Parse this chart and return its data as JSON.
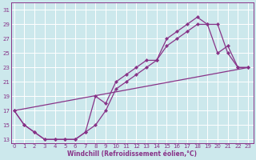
{
  "xlabel": "Windchill (Refroidissement éolien,°C)",
  "bg_color": "#cce8ec",
  "grid_color": "#b0d8dc",
  "line_color": "#883388",
  "x_ticks": [
    0,
    1,
    2,
    3,
    4,
    5,
    6,
    7,
    8,
    9,
    10,
    11,
    12,
    13,
    14,
    15,
    16,
    17,
    18,
    19,
    20,
    21,
    22,
    23
  ],
  "y_ticks": [
    13,
    15,
    17,
    19,
    21,
    23,
    25,
    27,
    29,
    31
  ],
  "xlim": [
    -0.3,
    23.5
  ],
  "ylim": [
    12.5,
    32
  ],
  "line1_x": [
    0,
    1,
    2,
    3,
    4,
    5,
    6,
    7,
    8,
    9,
    10,
    11,
    12,
    13,
    14,
    15,
    16,
    17,
    18,
    19,
    20,
    21,
    22,
    23
  ],
  "line1_y": [
    17,
    15,
    14,
    13,
    13,
    13,
    13,
    14,
    15,
    17,
    20,
    21,
    22,
    23,
    24,
    26,
    27,
    28,
    29,
    29,
    25,
    26,
    23,
    23
  ],
  "line2_x": [
    0,
    1,
    2,
    3,
    4,
    5,
    6,
    7,
    8,
    9,
    10,
    11,
    12,
    13,
    14,
    15,
    16,
    17,
    18,
    19,
    20,
    21,
    22,
    23
  ],
  "line2_y": [
    17,
    15,
    14,
    13,
    13,
    13,
    13,
    14,
    19,
    18,
    21,
    22,
    23,
    24,
    24,
    27,
    28,
    29,
    30,
    29,
    29,
    25,
    23,
    23
  ],
  "line3_x": [
    0,
    23
  ],
  "line3_y": [
    17,
    23
  ]
}
